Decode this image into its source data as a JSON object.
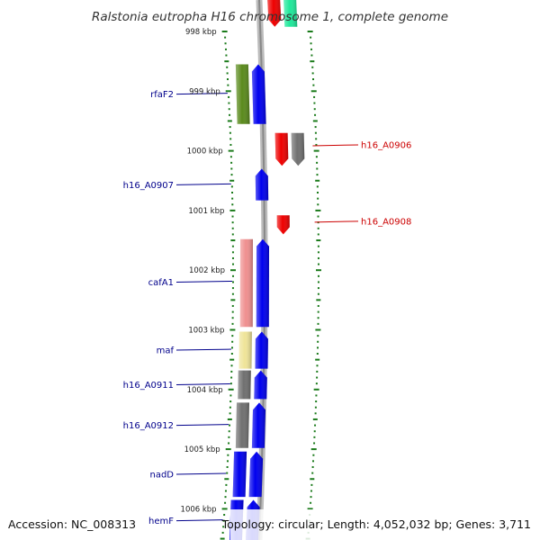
{
  "title": "Ralstonia eutropha H16 chromosome 1, complete genome",
  "footer": {
    "accession": "Accession: NC_008313",
    "topology": "Topology: circular; Length: 4,052,032 bp; Genes: 3,711"
  },
  "scale_ticks": [
    {
      "label": "998 kbp",
      "pos": 998.0
    },
    {
      "label": "999 kbp",
      "pos": 999.0
    },
    {
      "label": "1000 kbp",
      "pos": 1000.0
    },
    {
      "label": "1001 kbp",
      "pos": 1001.0
    },
    {
      "label": "1002 kbp",
      "pos": 1002.0
    },
    {
      "label": "1003 kbp",
      "pos": 1003.0
    },
    {
      "label": "1004 kbp",
      "pos": 1004.0
    },
    {
      "label": "1005 kbp",
      "pos": 1005.0
    },
    {
      "label": "1006 kbp",
      "pos": 1006.0
    }
  ],
  "colors": {
    "plus_label": "#00008b",
    "minus_label": "#cc0000",
    "tick": "#1a7a1a",
    "backbone": "#aaaaaa",
    "blue": "#0000ee",
    "red": "#ee0000",
    "gray": "#707070",
    "green_feature": "#5a8a1c",
    "pink_feature": "#ef8f8f",
    "yellow_feature": "#efe498",
    "teal_feature": "#1ee89a"
  },
  "features": [
    {
      "track": "minus_inner",
      "start": 997.45,
      "end": 997.92,
      "color": "red",
      "direction": "down"
    },
    {
      "track": "minus_outer",
      "start": 997.45,
      "end": 997.92,
      "color": "teal_feature",
      "direction": "none"
    },
    {
      "track": "plus_outer",
      "start": 998.55,
      "end": 999.55,
      "color": "green_feature",
      "direction": "none"
    },
    {
      "track": "plus_inner",
      "start": 998.55,
      "end": 999.55,
      "color": "blue",
      "direction": "up"
    },
    {
      "track": "minus_inner",
      "start": 999.7,
      "end": 1000.25,
      "color": "red",
      "direction": "down"
    },
    {
      "track": "minus_outer",
      "start": 999.7,
      "end": 1000.25,
      "color": "gray",
      "direction": "down"
    },
    {
      "track": "plus_inner",
      "start": 1000.3,
      "end": 1000.83,
      "color": "blue",
      "direction": "up"
    },
    {
      "track": "minus_inner",
      "start": 1001.08,
      "end": 1001.4,
      "color": "red",
      "direction": "down"
    },
    {
      "track": "plus_outer",
      "start": 1001.48,
      "end": 1002.95,
      "color": "pink_feature",
      "direction": "none"
    },
    {
      "track": "plus_inner",
      "start": 1001.48,
      "end": 1002.95,
      "color": "blue",
      "direction": "up"
    },
    {
      "track": "plus_outer",
      "start": 1003.03,
      "end": 1003.65,
      "color": "yellow_feature",
      "direction": "none"
    },
    {
      "track": "plus_inner",
      "start": 1003.03,
      "end": 1003.65,
      "color": "blue",
      "direction": "up"
    },
    {
      "track": "plus_outer",
      "start": 1003.68,
      "end": 1004.16,
      "color": "gray",
      "direction": "none"
    },
    {
      "track": "plus_inner",
      "start": 1003.68,
      "end": 1004.16,
      "color": "blue",
      "direction": "up"
    },
    {
      "track": "plus_outer",
      "start": 1004.22,
      "end": 1004.98,
      "color": "gray",
      "direction": "none"
    },
    {
      "track": "plus_inner",
      "start": 1004.22,
      "end": 1004.98,
      "color": "blue",
      "direction": "up"
    },
    {
      "track": "plus_outer",
      "start": 1005.04,
      "end": 1005.8,
      "color": "blue",
      "direction": "none"
    },
    {
      "track": "plus_inner",
      "start": 1005.04,
      "end": 1005.8,
      "color": "blue",
      "direction": "up"
    },
    {
      "track": "plus_outer",
      "start": 1005.85,
      "end": 1006.55,
      "color": "blue",
      "direction": "none"
    },
    {
      "track": "plus_inner",
      "start": 1005.85,
      "end": 1006.55,
      "color": "blue",
      "direction": "up"
    }
  ],
  "gene_labels": [
    {
      "name": "rfaF2",
      "strand": "plus",
      "pos": 999.05
    },
    {
      "name": "h16_A0906",
      "strand": "minus",
      "pos": 999.9
    },
    {
      "name": "h16_A0907",
      "strand": "plus",
      "pos": 1000.57
    },
    {
      "name": "h16_A0908",
      "strand": "minus",
      "pos": 1001.18
    },
    {
      "name": "cafA1",
      "strand": "plus",
      "pos": 1002.2
    },
    {
      "name": "maf",
      "strand": "plus",
      "pos": 1003.34
    },
    {
      "name": "h16_A0911",
      "strand": "plus",
      "pos": 1003.92
    },
    {
      "name": "h16_A0912",
      "strand": "plus",
      "pos": 1004.6
    },
    {
      "name": "nadD",
      "strand": "plus",
      "pos": 1005.42
    },
    {
      "name": "hemF",
      "strand": "plus",
      "pos": 1006.2
    }
  ]
}
